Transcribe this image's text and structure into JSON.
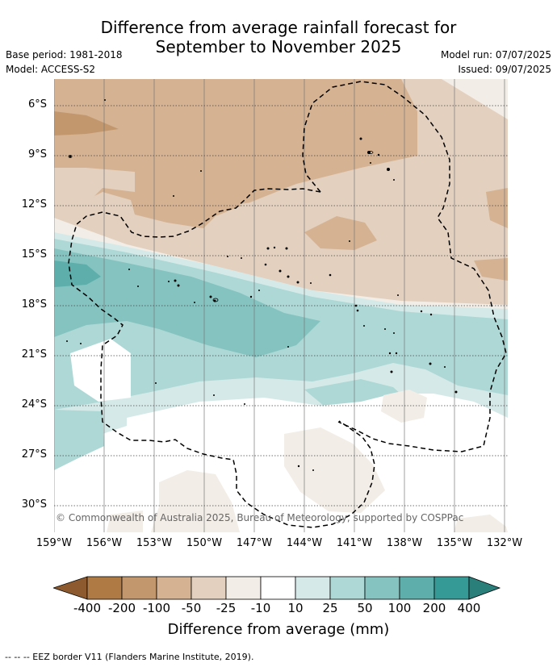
{
  "header": {
    "title_line1": "Difference from average rainfall forecast for",
    "title_line2": "September to November 2025",
    "base_period": "Base period: 1981-2018",
    "model": "Model: ACCESS-S2",
    "model_run": "Model run: 07/07/2025",
    "issued": "Issued: 09/07/2025"
  },
  "map": {
    "copyright": "© Commonwealth of Australia 2025, Bureau of Meteorology, supported by COSPPac",
    "lat_labels": [
      "6°S",
      "9°S",
      "12°S",
      "15°S",
      "18°S",
      "21°S",
      "24°S",
      "27°S",
      "30°S"
    ],
    "lon_labels": [
      "159°W",
      "156°W",
      "153°W",
      "150°W",
      "147°W",
      "144°W",
      "141°W",
      "138°W",
      "135°W",
      "132°W"
    ]
  },
  "legend": {
    "tick_labels": [
      "-400",
      "-200",
      "-100",
      "-50",
      "-25",
      "-10",
      "10",
      "25",
      "50",
      "100",
      "200",
      "400"
    ],
    "title": "Difference from average (mm)",
    "colors": [
      "#8c5a2e",
      "#b07a45",
      "#c3976d",
      "#d4b292",
      "#e3d0bf",
      "#f2ede6",
      "#ffffff",
      "#d5eae8",
      "#add8d6",
      "#85c3c0",
      "#5eaeab",
      "#359a96",
      "#2b7f7b"
    ]
  },
  "footer": {
    "eez_note": "-- -- -- EEZ border V11 (Flanders Marine Institute, 2019)."
  }
}
